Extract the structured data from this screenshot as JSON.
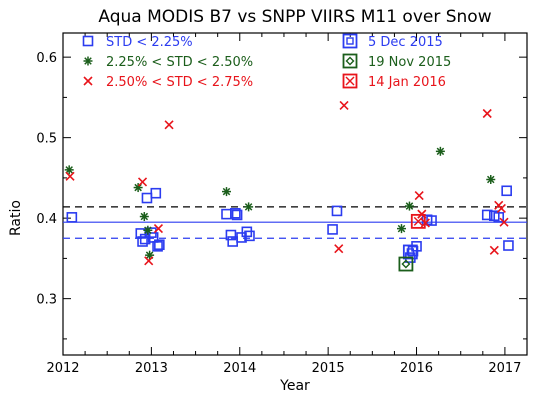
{
  "chart_data": {
    "type": "scatter",
    "title": "Aqua MODIS B7 vs SNPP VIIRS M11 over Snow",
    "xlabel": "Year",
    "ylabel": "Ratio",
    "xlim": [
      2012,
      2017.25
    ],
    "ylim": [
      0.23,
      0.63
    ],
    "xticks": [
      2012,
      2013,
      2014,
      2015,
      2016,
      2017
    ],
    "xtick_labels": [
      "2012",
      "2013",
      "2014",
      "2015",
      "2016",
      "2017"
    ],
    "yticks": [
      0.3,
      0.4,
      0.5,
      0.6
    ],
    "ytick_labels": [
      "0.3",
      "0.4",
      "0.5",
      "0.6"
    ],
    "grid": false,
    "reference_lines": [
      {
        "y": 0.395,
        "style": "solid",
        "color": "#2b3cf0"
      },
      {
        "y": 0.375,
        "style": "dashed",
        "color": "#2b3cf0"
      },
      {
        "y": 0.414,
        "style": "dashed",
        "color": "#000000"
      }
    ],
    "series": [
      {
        "name": "STD < 2.25%",
        "marker": "square",
        "color": "#2b3cf0",
        "points": [
          [
            2012.1,
            0.401
          ],
          [
            2012.88,
            0.381
          ],
          [
            2012.9,
            0.371
          ],
          [
            2012.93,
            0.374
          ],
          [
            2012.95,
            0.425
          ],
          [
            2013.0,
            0.382
          ],
          [
            2013.02,
            0.376
          ],
          [
            2013.05,
            0.431
          ],
          [
            2013.07,
            0.365
          ],
          [
            2013.09,
            0.367
          ],
          [
            2013.85,
            0.405
          ],
          [
            2013.9,
            0.379
          ],
          [
            2013.92,
            0.371
          ],
          [
            2013.95,
            0.406
          ],
          [
            2013.97,
            0.404
          ],
          [
            2014.02,
            0.376
          ],
          [
            2014.08,
            0.383
          ],
          [
            2014.11,
            0.378
          ],
          [
            2015.1,
            0.409
          ],
          [
            2015.05,
            0.386
          ],
          [
            2015.93,
            0.351
          ],
          [
            2015.96,
            0.359
          ],
          [
            2016.0,
            0.365
          ],
          [
            2016.12,
            0.398
          ],
          [
            2016.17,
            0.397
          ],
          [
            2016.8,
            0.404
          ],
          [
            2016.88,
            0.403
          ],
          [
            2016.93,
            0.401
          ],
          [
            2017.02,
            0.434
          ],
          [
            2017.04,
            0.366
          ]
        ]
      },
      {
        "name": "2.25% < STD < 2.50%",
        "marker": "asterisk",
        "color": "#1b5e1b",
        "points": [
          [
            2012.07,
            0.46
          ],
          [
            2012.85,
            0.438
          ],
          [
            2012.92,
            0.402
          ],
          [
            2012.98,
            0.354
          ],
          [
            2012.96,
            0.385
          ],
          [
            2013.85,
            0.433
          ],
          [
            2014.1,
            0.414
          ],
          [
            2015.83,
            0.387
          ],
          [
            2015.92,
            0.415
          ],
          [
            2016.27,
            0.483
          ],
          [
            2016.84,
            0.448
          ]
        ]
      },
      {
        "name": "2.50% < STD < 2.75%",
        "marker": "x",
        "color": "#e8141b",
        "points": [
          [
            2012.08,
            0.452
          ],
          [
            2012.9,
            0.445
          ],
          [
            2012.97,
            0.347
          ],
          [
            2013.08,
            0.387
          ],
          [
            2013.2,
            0.516
          ],
          [
            2015.18,
            0.54
          ],
          [
            2015.12,
            0.362
          ],
          [
            2016.03,
            0.428
          ],
          [
            2016.1,
            0.394
          ],
          [
            2016.06,
            0.405
          ],
          [
            2016.8,
            0.53
          ],
          [
            2016.88,
            0.36
          ],
          [
            2016.93,
            0.416
          ],
          [
            2016.96,
            0.412
          ],
          [
            2016.99,
            0.395
          ]
        ]
      },
      {
        "name": "5 Dec 2015",
        "marker": "square-dot",
        "color": "#2b3cf0",
        "points": [
          [
            2015.93,
            0.358
          ]
        ]
      },
      {
        "name": "19 Nov 2015",
        "marker": "diamond-square",
        "color": "#1b5e1b",
        "points": [
          [
            2015.88,
            0.343
          ]
        ]
      },
      {
        "name": "14 Jan 2016",
        "marker": "square-x",
        "color": "#e8141b",
        "points": [
          [
            2016.02,
            0.396
          ]
        ]
      }
    ],
    "legend": {
      "placement": "top",
      "left_column": [
        {
          "label": "STD < 2.25%",
          "marker": "square",
          "color": "#2b3cf0"
        },
        {
          "label": "2.25% < STD < 2.50%",
          "marker": "asterisk",
          "color": "#1b5e1b"
        },
        {
          "label": "2.50% < STD < 2.75%",
          "marker": "x",
          "color": "#e8141b"
        }
      ],
      "right_column": [
        {
          "label": "5 Dec 2015",
          "marker": "square-dot",
          "color": "#2b3cf0"
        },
        {
          "label": "19 Nov 2015",
          "marker": "diamond-square",
          "color": "#1b5e1b"
        },
        {
          "label": "14 Jan 2016",
          "marker": "square-x",
          "color": "#e8141b"
        }
      ]
    }
  }
}
